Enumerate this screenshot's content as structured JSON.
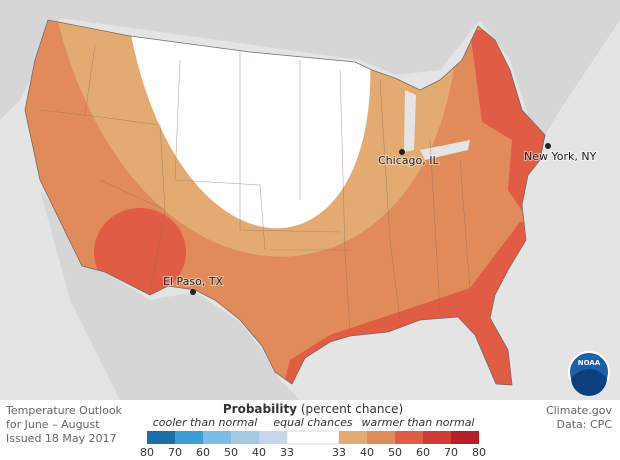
{
  "info": {
    "lines": [
      "Temperature Outlook",
      "for June – August",
      "Issued 18 May 2017"
    ]
  },
  "credit": [
    "Climate.gov",
    "Data: CPC"
  ],
  "logo": "NOAA",
  "cities": [
    "Chicago, IL",
    "New York, NY",
    "El Paso, TX"
  ],
  "legend": {
    "title": "Probability",
    "subtitle": "(percent chance)",
    "cooler_label": "cooler than normal",
    "equal_label": "equal chances",
    "warmer_label": "warmer than normal",
    "cooler": {
      "ticks": [
        80,
        70,
        60,
        50,
        40,
        33
      ],
      "colors": [
        "#1b6ea8",
        "#3c9ed6",
        "#7bbde5",
        "#a8c9e2",
        "#c7d7e9"
      ]
    },
    "equal_color": "#ffffff",
    "warmer": {
      "ticks": [
        33,
        40,
        50,
        60,
        70,
        80
      ],
      "colors": [
        "#e3ab72",
        "#e08b59",
        "#e05c44",
        "#d03b36",
        "#b31f25"
      ]
    }
  }
}
